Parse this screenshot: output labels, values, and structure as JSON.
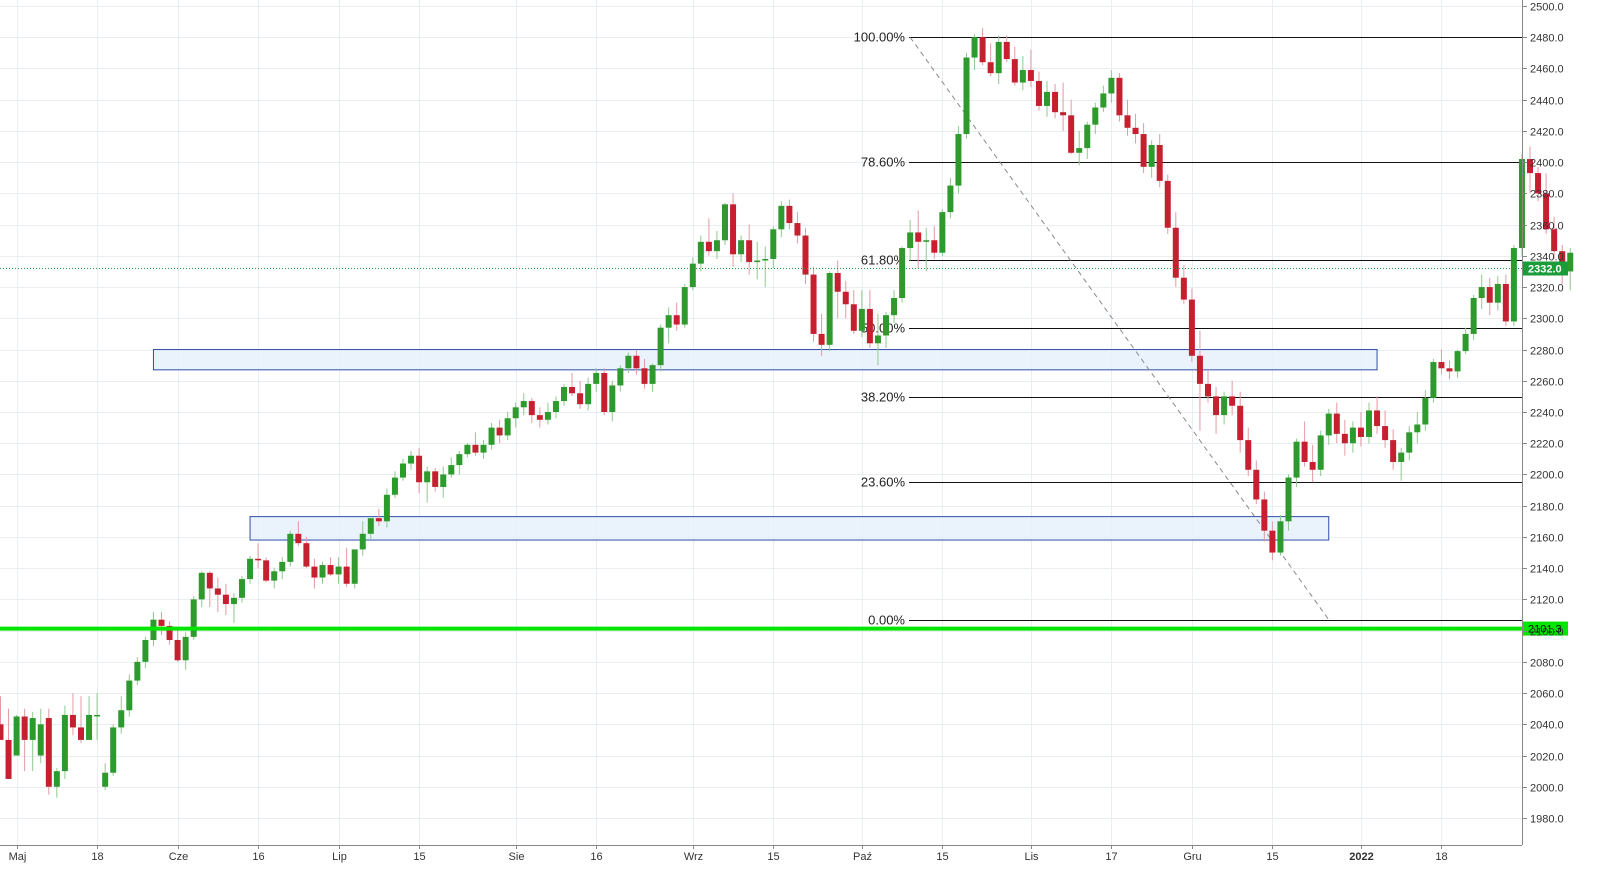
{
  "chart_data": {
    "type": "candlestick",
    "title": "",
    "y_axis": {
      "range": [
        1970,
        2505
      ],
      "ticks": [
        "1980.0",
        "2000.0",
        "2020.0",
        "2040.0",
        "2060.0",
        "2080.0",
        "2100.0",
        "2120.0",
        "2140.0",
        "2160.0",
        "2180.0",
        "2200.0",
        "2220.0",
        "2240.0",
        "2260.0",
        "2280.0",
        "2300.0",
        "2320.0",
        "2340.0",
        "2360.0",
        "2380.0",
        "2400.0",
        "2420.0",
        "2440.0",
        "2460.0",
        "2480.0",
        "2500.0"
      ],
      "position": "right"
    },
    "x_axis": {
      "ticks": [
        {
          "label": "Maj",
          "index": 2
        },
        {
          "label": "18",
          "index": 12
        },
        {
          "label": "Cze",
          "index": 22
        },
        {
          "label": "16",
          "index": 32
        },
        {
          "label": "Lip",
          "index": 42
        },
        {
          "label": "15",
          "index": 52
        },
        {
          "label": "Sie",
          "index": 64
        },
        {
          "label": "16",
          "index": 74
        },
        {
          "label": "Wrz",
          "index": 86
        },
        {
          "label": "15",
          "index": 96
        },
        {
          "label": "Paź",
          "index": 107
        },
        {
          "label": "15",
          "index": 117
        },
        {
          "label": "Lis",
          "index": 128
        },
        {
          "label": "17",
          "index": 138
        },
        {
          "label": "Gru",
          "index": 148
        },
        {
          "label": "15",
          "index": 158
        },
        {
          "label": "2022",
          "index": 169,
          "bold": true
        },
        {
          "label": "18",
          "index": 179
        }
      ]
    },
    "candles": [
      [
        2040,
        2058,
        2030,
        2030
      ],
      [
        2030,
        2050,
        2005,
        2005
      ],
      [
        2020,
        2046,
        2020,
        2045
      ],
      [
        2045,
        2050,
        2010,
        2030
      ],
      [
        2030,
        2048,
        2010,
        2044
      ],
      [
        2020,
        2050,
        2015,
        2040
      ],
      [
        2044,
        2050,
        1995,
        2000
      ],
      [
        2000,
        2012,
        1993,
        2010
      ],
      [
        2010,
        2052,
        2005,
        2046
      ],
      [
        2046,
        2060,
        2033,
        2038
      ],
      [
        2038,
        2058,
        2028,
        2030
      ],
      [
        2030,
        2058,
        2030,
        2046
      ],
      [
        2046,
        2060,
        2030,
        2046
      ],
      [
        2000,
        2015,
        1998,
        2009
      ],
      [
        2009,
        2040,
        2007,
        2038
      ],
      [
        2038,
        2058,
        2034,
        2049
      ],
      [
        2049,
        2072,
        2045,
        2068
      ],
      [
        2068,
        2083,
        2065,
        2080
      ],
      [
        2080,
        2096,
        2076,
        2094
      ],
      [
        2094,
        2112,
        2090,
        2107
      ],
      [
        2107,
        2112,
        2097,
        2103
      ],
      [
        2103,
        2106,
        2091,
        2094
      ],
      [
        2094,
        2102,
        2080,
        2081
      ],
      [
        2081,
        2099,
        2075,
        2096
      ],
      [
        2096,
        2122,
        2094,
        2120
      ],
      [
        2120,
        2138,
        2115,
        2137
      ],
      [
        2137,
        2138,
        2115,
        2127
      ],
      [
        2127,
        2134,
        2112,
        2123
      ],
      [
        2123,
        2130,
        2110,
        2117
      ],
      [
        2117,
        2124,
        2105,
        2121
      ],
      [
        2121,
        2135,
        2118,
        2133
      ],
      [
        2133,
        2148,
        2130,
        2146
      ],
      [
        2146,
        2156,
        2140,
        2145
      ],
      [
        2145,
        2147,
        2131,
        2132
      ],
      [
        2132,
        2140,
        2127,
        2138
      ],
      [
        2138,
        2147,
        2133,
        2144
      ],
      [
        2144,
        2164,
        2141,
        2162
      ],
      [
        2162,
        2170,
        2154,
        2156
      ],
      [
        2156,
        2160,
        2140,
        2141
      ],
      [
        2141,
        2146,
        2127,
        2134
      ],
      [
        2134,
        2144,
        2130,
        2142
      ],
      [
        2142,
        2147,
        2135,
        2136
      ],
      [
        2136,
        2147,
        2130,
        2141
      ],
      [
        2141,
        2153,
        2128,
        2130
      ],
      [
        2130,
        2152,
        2127,
        2152
      ],
      [
        2152,
        2170,
        2148,
        2162
      ],
      [
        2162,
        2172,
        2158,
        2172
      ],
      [
        2172,
        2178,
        2167,
        2170
      ],
      [
        2170,
        2191,
        2166,
        2187
      ],
      [
        2187,
        2202,
        2185,
        2198
      ],
      [
        2198,
        2210,
        2196,
        2207
      ],
      [
        2207,
        2215,
        2203,
        2212
      ],
      [
        2212,
        2217,
        2188,
        2195
      ],
      [
        2195,
        2205,
        2182,
        2202
      ],
      [
        2202,
        2204,
        2189,
        2192
      ],
      [
        2192,
        2205,
        2185,
        2200
      ],
      [
        2200,
        2211,
        2198,
        2206
      ],
      [
        2206,
        2215,
        2200,
        2213
      ],
      [
        2213,
        2220,
        2211,
        2219
      ],
      [
        2219,
        2227,
        2212,
        2214
      ],
      [
        2214,
        2222,
        2210,
        2219
      ],
      [
        2219,
        2233,
        2216,
        2230
      ],
      [
        2230,
        2235,
        2220,
        2225
      ],
      [
        2225,
        2240,
        2222,
        2236
      ],
      [
        2236,
        2246,
        2230,
        2243
      ],
      [
        2243,
        2252,
        2238,
        2247
      ],
      [
        2247,
        2249,
        2233,
        2238
      ],
      [
        2238,
        2243,
        2230,
        2235
      ],
      [
        2235,
        2246,
        2232,
        2240
      ],
      [
        2240,
        2250,
        2236,
        2247
      ],
      [
        2247,
        2258,
        2244,
        2256
      ],
      [
        2256,
        2265,
        2250,
        2252
      ],
      [
        2252,
        2260,
        2242,
        2245
      ],
      [
        2245,
        2262,
        2241,
        2258
      ],
      [
        2258,
        2268,
        2253,
        2265
      ],
      [
        2265,
        2268,
        2238,
        2240
      ],
      [
        2240,
        2260,
        2234,
        2257
      ],
      [
        2257,
        2270,
        2253,
        2268
      ],
      [
        2268,
        2278,
        2265,
        2276
      ],
      [
        2276,
        2280,
        2264,
        2268
      ],
      [
        2268,
        2274,
        2255,
        2258
      ],
      [
        2258,
        2271,
        2253,
        2270
      ],
      [
        2270,
        2296,
        2266,
        2294
      ],
      [
        2294,
        2307,
        2284,
        2302
      ],
      [
        2302,
        2310,
        2292,
        2296
      ],
      [
        2296,
        2322,
        2294,
        2320
      ],
      [
        2320,
        2339,
        2318,
        2335
      ],
      [
        2335,
        2353,
        2330,
        2349
      ],
      [
        2349,
        2364,
        2340,
        2343
      ],
      [
        2343,
        2356,
        2338,
        2350
      ],
      [
        2350,
        2374,
        2347,
        2373
      ],
      [
        2373,
        2380,
        2333,
        2341
      ],
      [
        2341,
        2353,
        2336,
        2350
      ],
      [
        2350,
        2360,
        2328,
        2336
      ],
      [
        2336,
        2349,
        2325,
        2337
      ],
      [
        2337,
        2346,
        2320,
        2338
      ],
      [
        2338,
        2359,
        2332,
        2357
      ],
      [
        2357,
        2375,
        2352,
        2372
      ],
      [
        2372,
        2376,
        2357,
        2361
      ],
      [
        2361,
        2368,
        2348,
        2353
      ],
      [
        2353,
        2358,
        2322,
        2328
      ],
      [
        2328,
        2333,
        2285,
        2290
      ],
      [
        2290,
        2303,
        2276,
        2283
      ],
      [
        2283,
        2330,
        2279,
        2329
      ],
      [
        2329,
        2337,
        2300,
        2317
      ],
      [
        2317,
        2324,
        2300,
        2309
      ],
      [
        2309,
        2318,
        2290,
        2292
      ],
      [
        2292,
        2318,
        2288,
        2306
      ],
      [
        2306,
        2318,
        2281,
        2284
      ],
      [
        2284,
        2303,
        2270,
        2289
      ],
      [
        2289,
        2304,
        2281,
        2302
      ],
      [
        2302,
        2318,
        2297,
        2313
      ],
      [
        2313,
        2346,
        2310,
        2345
      ],
      [
        2345,
        2363,
        2337,
        2355
      ],
      [
        2355,
        2369,
        2332,
        2349
      ],
      [
        2349,
        2358,
        2330,
        2350
      ],
      [
        2350,
        2359,
        2338,
        2342
      ],
      [
        2342,
        2370,
        2340,
        2368
      ],
      [
        2368,
        2390,
        2364,
        2385
      ],
      [
        2385,
        2423,
        2380,
        2418
      ],
      [
        2418,
        2470,
        2415,
        2467
      ],
      [
        2467,
        2482,
        2459,
        2480
      ],
      [
        2480,
        2486,
        2462,
        2464
      ],
      [
        2464,
        2476,
        2455,
        2457
      ],
      [
        2457,
        2481,
        2450,
        2477
      ],
      [
        2477,
        2481,
        2464,
        2466
      ],
      [
        2466,
        2474,
        2449,
        2451
      ],
      [
        2451,
        2468,
        2446,
        2459
      ],
      [
        2459,
        2472,
        2448,
        2452
      ],
      [
        2452,
        2458,
        2433,
        2436
      ],
      [
        2436,
        2452,
        2429,
        2445
      ],
      [
        2445,
        2450,
        2428,
        2432
      ],
      [
        2432,
        2451,
        2420,
        2430
      ],
      [
        2430,
        2440,
        2405,
        2406
      ],
      [
        2406,
        2420,
        2398,
        2409
      ],
      [
        2409,
        2426,
        2402,
        2424
      ],
      [
        2424,
        2438,
        2418,
        2435
      ],
      [
        2435,
        2449,
        2432,
        2444
      ],
      [
        2444,
        2459,
        2438,
        2454
      ],
      [
        2454,
        2457,
        2426,
        2430
      ],
      [
        2430,
        2440,
        2417,
        2422
      ],
      [
        2422,
        2431,
        2412,
        2418
      ],
      [
        2418,
        2425,
        2393,
        2397
      ],
      [
        2397,
        2414,
        2390,
        2411
      ],
      [
        2411,
        2418,
        2384,
        2388
      ],
      [
        2388,
        2392,
        2354,
        2358
      ],
      [
        2358,
        2368,
        2320,
        2326
      ],
      [
        2326,
        2334,
        2309,
        2312
      ],
      [
        2312,
        2319,
        2272,
        2276
      ],
      [
        2276,
        2292,
        2228,
        2258
      ],
      [
        2258,
        2267,
        2246,
        2250
      ],
      [
        2250,
        2256,
        2226,
        2238
      ],
      [
        2238,
        2253,
        2232,
        2250
      ],
      [
        2250,
        2260,
        2238,
        2244
      ],
      [
        2244,
        2253,
        2214,
        2222
      ],
      [
        2222,
        2230,
        2199,
        2203
      ],
      [
        2203,
        2209,
        2181,
        2184
      ],
      [
        2184,
        2189,
        2157,
        2164
      ],
      [
        2164,
        2170,
        2145,
        2150
      ],
      [
        2150,
        2174,
        2148,
        2170
      ],
      [
        2170,
        2200,
        2164,
        2198
      ],
      [
        2198,
        2223,
        2192,
        2221
      ],
      [
        2221,
        2234,
        2205,
        2208
      ],
      [
        2208,
        2219,
        2195,
        2203
      ],
      [
        2203,
        2228,
        2199,
        2225
      ],
      [
        2225,
        2242,
        2219,
        2239
      ],
      [
        2239,
        2246,
        2220,
        2226
      ],
      [
        2226,
        2235,
        2212,
        2220
      ],
      [
        2220,
        2234,
        2214,
        2230
      ],
      [
        2230,
        2240,
        2218,
        2224
      ],
      [
        2224,
        2246,
        2220,
        2241
      ],
      [
        2241,
        2250,
        2226,
        2231
      ],
      [
        2231,
        2241,
        2217,
        2222
      ],
      [
        2222,
        2229,
        2203,
        2208
      ],
      [
        2208,
        2217,
        2196,
        2214
      ],
      [
        2214,
        2231,
        2209,
        2227
      ],
      [
        2227,
        2240,
        2220,
        2232
      ],
      [
        2232,
        2254,
        2228,
        2249
      ],
      [
        2249,
        2274,
        2246,
        2272
      ],
      [
        2272,
        2280,
        2264,
        2268
      ],
      [
        2268,
        2273,
        2261,
        2266
      ],
      [
        2266,
        2280,
        2262,
        2279
      ],
      [
        2279,
        2294,
        2277,
        2290
      ],
      [
        2290,
        2315,
        2286,
        2313
      ],
      [
        2313,
        2328,
        2306,
        2320
      ],
      [
        2320,
        2326,
        2302,
        2310
      ],
      [
        2310,
        2327,
        2305,
        2322
      ],
      [
        2322,
        2328,
        2295,
        2298
      ],
      [
        2298,
        2347,
        2295,
        2345
      ],
      [
        2345,
        2405,
        2340,
        2402
      ],
      [
        2402,
        2410,
        2380,
        2393
      ],
      [
        2393,
        2397,
        2375,
        2380
      ],
      [
        2380,
        2393,
        2354,
        2357
      ],
      [
        2357,
        2365,
        2338,
        2343
      ],
      [
        2343,
        2347,
        2322,
        2330
      ],
      [
        2330,
        2345,
        2318,
        2342
      ]
    ],
    "current_price": {
      "value": 2332.0,
      "label": "2332.0",
      "color": "#1a9c3a"
    },
    "support_line": {
      "value": 2101.3,
      "label": "2101.3",
      "color": "#00e600"
    },
    "fibonacci": {
      "high": 2480,
      "low": 2107,
      "levels": [
        {
          "label": "100.00%",
          "value": 2480
        },
        {
          "label": "78.60%",
          "value": 2400.2
        },
        {
          "label": "61.80%",
          "value": 2337.5
        },
        {
          "label": "50.00%",
          "value": 2293.5
        },
        {
          "label": "38.20%",
          "value": 2249.5
        },
        {
          "label": "23.60%",
          "value": 2195.0
        },
        {
          "label": "0.00%",
          "value": 2107
        }
      ]
    },
    "zones": [
      {
        "from_index": 19,
        "to_index": 171,
        "y_low": 2267,
        "y_high": 2280
      },
      {
        "from_index": 31,
        "to_index": 165,
        "y_low": 2158,
        "y_high": 2173
      }
    ],
    "trendline": {
      "from_index": 113,
      "from_value": 2480,
      "to_index": 165,
      "to_value": 2107
    },
    "colors": {
      "up": "#2e9a2e",
      "down": "#c62030",
      "grid": "#e9eef2",
      "zone_fill": "#e6f0fb",
      "zone_border": "#2f4fa8"
    }
  }
}
